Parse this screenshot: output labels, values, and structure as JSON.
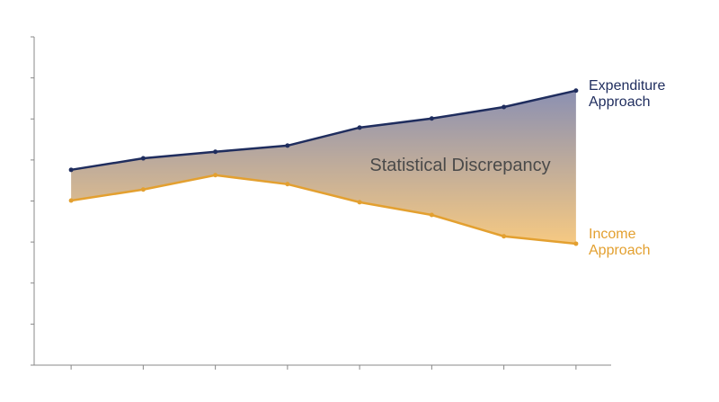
{
  "chart_data": {
    "type": "line",
    "annotation": "Statistical Discrepancy",
    "categories": [
      null,
      null,
      null,
      null,
      null,
      null,
      null,
      null
    ],
    "series": [
      {
        "name": "Expenditure Approach",
        "color": "#1f2d5e",
        "values": [
          4.76,
          5.04,
          5.2,
          5.35,
          5.79,
          6.01,
          6.29,
          6.69
        ]
      },
      {
        "name": "Income Approach",
        "color": "#e3a030",
        "values": [
          4.01,
          4.28,
          4.63,
          4.41,
          3.97,
          3.66,
          3.14,
          2.96
        ]
      }
    ],
    "fill_between": {
      "top_color": "#8b90b2",
      "bottom_color": "#f6c982"
    },
    "ylim": [
      0,
      8
    ],
    "yticks": [
      0,
      1,
      2,
      3,
      4,
      5,
      6,
      7,
      8
    ],
    "grid": false
  }
}
